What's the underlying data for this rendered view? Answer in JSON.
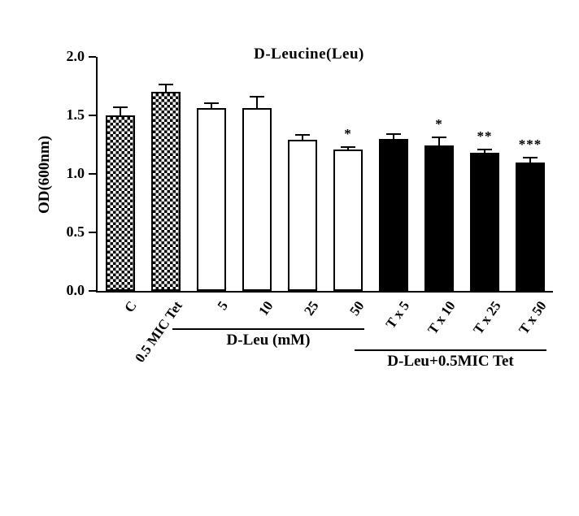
{
  "figure": {
    "title": "D-Leucine(Leu)",
    "ylabel": "OD(600nm)"
  },
  "chart_data": {
    "type": "bar",
    "title": "D-Leucine(Leu)",
    "xlabel": "",
    "ylabel": "OD(600nm)",
    "ylim": [
      0,
      2.0
    ],
    "yticks": [
      0.0,
      0.5,
      1.0,
      1.5,
      2.0
    ],
    "grid": false,
    "legend": "none",
    "categories": [
      "C",
      "0.5 MIC Tet",
      "5",
      "10",
      "25",
      "50",
      "T x 5",
      "T x 10",
      "T x 25",
      "T x 50"
    ],
    "values": [
      1.5,
      1.7,
      1.56,
      1.56,
      1.29,
      1.21,
      1.3,
      1.24,
      1.18,
      1.1
    ],
    "errors": [
      0.07,
      0.06,
      0.04,
      0.1,
      0.04,
      0.02,
      0.04,
      0.07,
      0.03,
      0.04
    ],
    "significance": [
      "",
      "",
      "",
      "",
      "",
      "*",
      "",
      "*",
      "**",
      "***"
    ],
    "bar_styles": [
      "checker",
      "checker",
      "open",
      "open",
      "open",
      "open",
      "solid",
      "solid",
      "solid",
      "solid"
    ],
    "groups": [
      {
        "label": "D-Leu (mM)",
        "start_index": 2,
        "end_index": 5
      },
      {
        "label": "D-Leu+0.5MIC Tet",
        "start_index": 6,
        "end_index": 9
      }
    ],
    "colors": {
      "axis": "#000000",
      "text": "#000000",
      "bar_border": "#000000",
      "bar_fill_open": "#ffffff",
      "bar_fill_solid": "#000000",
      "background": "#ffffff"
    }
  }
}
